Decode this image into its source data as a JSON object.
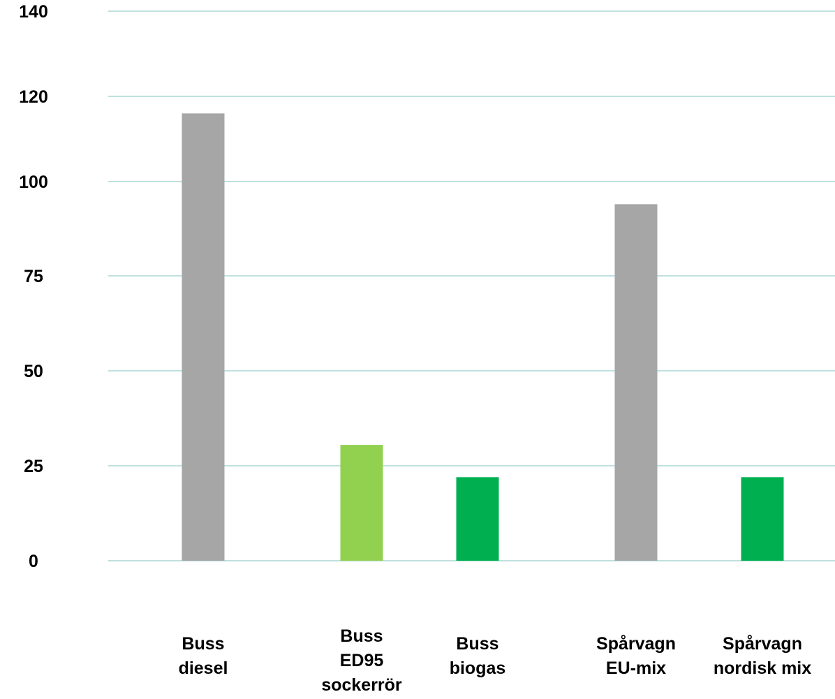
{
  "chart_data": {
    "type": "bar",
    "title": "",
    "xlabel": "",
    "ylabel": "",
    "grid": true,
    "legend": "none",
    "y_ticks": [
      "0",
      "25",
      "50",
      "75",
      "100",
      "120",
      "140"
    ],
    "categories": [
      [
        "Buss",
        "diesel"
      ],
      [
        "Buss",
        "ED95",
        "sockerrör"
      ],
      [
        "Buss",
        "biogas"
      ],
      [
        "Spårvagn",
        "EU-mix"
      ],
      [
        "Spårvagn",
        "nordisk mix"
      ]
    ],
    "values": [
      116,
      30.5,
      22,
      94,
      22
    ],
    "colors": [
      "#a6a6a6",
      "#92d050",
      "#00b050",
      "#a6a6a6",
      "#00b050"
    ],
    "gridline_color": "#bfe0de"
  }
}
